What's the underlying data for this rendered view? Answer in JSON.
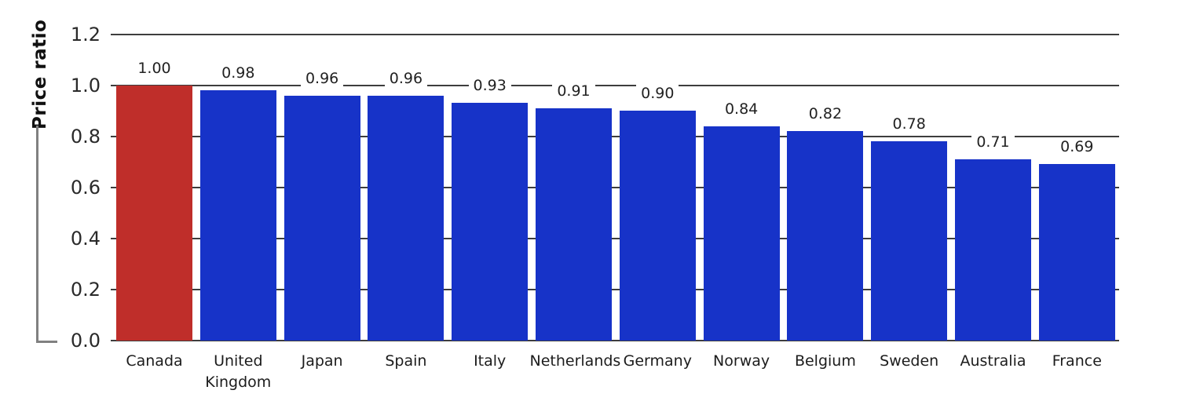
{
  "chart_data": {
    "type": "bar",
    "title": "",
    "ylabel": "Price ratio",
    "xlabel": "",
    "categories": [
      "Canada",
      "United Kingdom",
      "Japan",
      "Spain",
      "Italy",
      "Netherlands",
      "Germany",
      "Norway",
      "Belgium",
      "Sweden",
      "Australia",
      "France"
    ],
    "values": [
      1.0,
      0.98,
      0.96,
      0.96,
      0.93,
      0.91,
      0.9,
      0.84,
      0.82,
      0.78,
      0.71,
      0.69
    ],
    "value_labels": [
      "1.00",
      "0.98",
      "0.96",
      "0.96",
      "0.93",
      "0.91",
      "0.90",
      "0.84",
      "0.82",
      "0.78",
      "0.71",
      "0.69"
    ],
    "highlight_index": 0,
    "ylim": [
      0,
      1.2
    ],
    "ytick_values": [
      1.2,
      1.0,
      0.8,
      0.6,
      0.4,
      0.2,
      0.0
    ],
    "ytick_labels": [
      "1.2",
      "1.0",
      "0.8",
      "0.6",
      "0.4",
      "0.2",
      "0.0"
    ],
    "grid": true,
    "legend": "none"
  },
  "colors": {
    "highlight_bar": "#bf2e2a",
    "default_bar": "#1733c8",
    "gridline": "#3d3d3d",
    "axis_bracket": "#808080",
    "tick_text": "#2a2a2a",
    "background": "#ffffff"
  }
}
